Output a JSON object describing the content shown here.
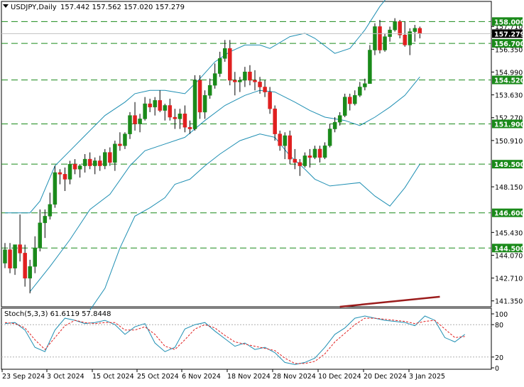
{
  "header": {
    "symbol_label": "USDJPY,Daily",
    "ohlc_label": "157.442 157.562 157.020 157.279"
  },
  "stoch": {
    "label": "Stoch(5,3,3) 61.6119 57.8448",
    "levels": [
      100,
      80,
      20,
      0
    ],
    "ylim": [
      0,
      100
    ]
  },
  "colors": {
    "up": "#1a8a1a",
    "down": "#e02020",
    "band": "#1f8fb3",
    "level_line": "#1a8a1a",
    "trendline": "#9b1c1c",
    "stoch_main": "#1f8fb3",
    "stoch_signal": "#e02020",
    "current_price_bg": "#000000"
  },
  "chart_data": {
    "type": "candlestick",
    "ylim": [
      141.0,
      159.2
    ],
    "y_ticks": [
      "157.710",
      "156.350",
      "154.990",
      "153.630",
      "152.270",
      "150.910",
      "148.150",
      "145.430",
      "144.070",
      "142.710",
      "141.350"
    ],
    "x_labels": [
      "23 Sep 2024",
      "3 Oct 2024",
      "15 Oct 2024",
      "25 Oct 2024",
      "6 Nov 2024",
      "18 Nov 2024",
      "28 Nov 2024",
      "10 Dec 2024",
      "20 Dec 2024",
      "3 Jan 2025"
    ],
    "level_lines": [
      "158.000",
      "156.700",
      "154.520",
      "151.900",
      "149.500",
      "146.600",
      "144.500"
    ],
    "current_price": "157.279",
    "candles": [
      [
        143.6,
        144.8,
        143.3,
        144.4
      ],
      [
        144.4,
        144.8,
        143.0,
        143.3
      ],
      [
        143.3,
        144.6,
        142.9,
        144.7
      ],
      [
        144.7,
        146.5,
        143.7,
        144.2
      ],
      [
        144.2,
        144.7,
        142.2,
        142.7
      ],
      [
        142.7,
        143.8,
        141.8,
        143.4
      ],
      [
        143.4,
        145.2,
        143.0,
        144.5
      ],
      [
        144.5,
        146.8,
        144.3,
        146.0
      ],
      [
        146.0,
        146.8,
        145.1,
        146.4
      ],
      [
        146.4,
        147.8,
        146.2,
        147.1
      ],
      [
        147.1,
        149.4,
        146.9,
        149.0
      ],
      [
        149.0,
        149.2,
        148.3,
        148.9
      ],
      [
        148.9,
        149.3,
        147.9,
        148.6
      ],
      [
        148.6,
        149.7,
        148.3,
        149.5
      ],
      [
        149.5,
        149.8,
        148.9,
        149.2
      ],
      [
        149.2,
        149.5,
        148.7,
        149.4
      ],
      [
        149.4,
        150.1,
        149.0,
        149.8
      ],
      [
        149.8,
        150.2,
        149.2,
        149.4
      ],
      [
        149.4,
        149.9,
        148.9,
        149.7
      ],
      [
        149.7,
        150.0,
        149.1,
        149.4
      ],
      [
        149.4,
        150.4,
        149.2,
        150.2
      ],
      [
        150.2,
        150.5,
        149.4,
        149.6
      ],
      [
        149.6,
        150.9,
        149.1,
        150.7
      ],
      [
        150.7,
        151.4,
        150.3,
        150.6
      ],
      [
        150.6,
        151.4,
        150.4,
        151.3
      ],
      [
        151.3,
        152.6,
        151.0,
        152.4
      ],
      [
        152.4,
        153.2,
        151.5,
        151.9
      ],
      [
        151.9,
        152.5,
        151.4,
        152.2
      ],
      [
        152.2,
        153.5,
        152.1,
        153.1
      ],
      [
        153.1,
        153.4,
        152.6,
        152.9
      ],
      [
        152.9,
        153.5,
        152.4,
        153.3
      ],
      [
        153.3,
        153.9,
        152.6,
        152.7
      ],
      [
        152.7,
        153.1,
        152.1,
        153.0
      ],
      [
        153.0,
        153.4,
        152.1,
        152.3
      ],
      [
        152.3,
        152.8,
        151.6,
        152.2
      ],
      [
        152.2,
        152.8,
        151.6,
        152.5
      ],
      [
        152.5,
        153.0,
        151.4,
        151.7
      ],
      [
        151.7,
        152.1,
        151.3,
        151.6
      ],
      [
        151.6,
        154.8,
        151.5,
        154.5
      ],
      [
        154.5,
        154.8,
        152.2,
        152.6
      ],
      [
        152.6,
        153.9,
        152.2,
        153.6
      ],
      [
        153.6,
        154.6,
        153.4,
        154.2
      ],
      [
        154.2,
        155.5,
        154.0,
        154.9
      ],
      [
        154.9,
        156.2,
        154.7,
        155.8
      ],
      [
        155.8,
        156.9,
        155.6,
        156.4
      ],
      [
        156.4,
        156.9,
        154.2,
        154.5
      ],
      [
        154.5,
        155.0,
        153.6,
        154.4
      ],
      [
        154.4,
        154.7,
        153.8,
        154.5
      ],
      [
        154.5,
        155.3,
        154.1,
        155.0
      ],
      [
        155.0,
        155.4,
        154.2,
        154.5
      ],
      [
        154.5,
        155.1,
        153.9,
        154.4
      ],
      [
        154.4,
        154.7,
        153.7,
        154.1
      ],
      [
        154.1,
        154.5,
        153.5,
        153.8
      ],
      [
        153.8,
        154.1,
        152.5,
        152.8
      ],
      [
        152.8,
        153.0,
        150.9,
        151.3
      ],
      [
        151.3,
        151.5,
        150.3,
        150.6
      ],
      [
        150.6,
        151.4,
        149.8,
        151.2
      ],
      [
        151.2,
        151.5,
        149.5,
        149.8
      ],
      [
        149.8,
        150.4,
        149.2,
        149.6
      ],
      [
        149.6,
        149.8,
        148.8,
        149.4
      ],
      [
        149.4,
        150.2,
        149.3,
        150.0
      ],
      [
        150.0,
        150.4,
        149.3,
        149.9
      ],
      [
        149.9,
        150.6,
        149.8,
        150.4
      ],
      [
        150.4,
        150.6,
        149.6,
        149.9
      ],
      [
        149.9,
        150.8,
        149.8,
        150.6
      ],
      [
        150.6,
        151.9,
        150.5,
        151.6
      ],
      [
        151.6,
        152.3,
        151.4,
        152.0
      ],
      [
        152.0,
        152.6,
        151.8,
        152.4
      ],
      [
        152.4,
        153.7,
        152.3,
        153.5
      ],
      [
        153.5,
        153.7,
        152.7,
        153.1
      ],
      [
        153.1,
        153.9,
        153.0,
        153.6
      ],
      [
        153.6,
        154.4,
        153.5,
        154.1
      ],
      [
        154.1,
        154.6,
        153.9,
        154.3
      ],
      [
        154.3,
        156.6,
        154.3,
        156.3
      ],
      [
        156.3,
        157.9,
        156.0,
        157.7
      ],
      [
        157.7,
        158.1,
        156.1,
        156.3
      ],
      [
        156.3,
        157.3,
        156.2,
        157.1
      ],
      [
        157.1,
        157.7,
        156.8,
        157.5
      ],
      [
        157.5,
        158.2,
        157.4,
        158.0
      ],
      [
        158.0,
        158.1,
        157.0,
        157.2
      ],
      [
        157.2,
        158.0,
        156.5,
        156.6
      ],
      [
        156.6,
        157.6,
        156.0,
        157.4
      ],
      [
        157.4,
        157.8,
        156.8,
        157.6
      ],
      [
        157.6,
        157.7,
        157.0,
        157.3
      ]
    ],
    "bollinger": {
      "upper": [
        [
          0,
          146.6
        ],
        [
          2,
          146.6
        ],
        [
          5,
          146.6
        ],
        [
          7,
          147.3
        ],
        [
          10,
          149.4
        ],
        [
          13,
          150.3
        ],
        [
          16,
          151.2
        ],
        [
          20,
          152.4
        ],
        [
          24,
          153.2
        ],
        [
          26,
          153.7
        ],
        [
          29,
          153.9
        ],
        [
          32,
          153.9
        ],
        [
          36,
          153.7
        ],
        [
          39,
          154.6
        ],
        [
          42,
          155.6
        ],
        [
          45,
          156.2
        ],
        [
          48,
          156.6
        ],
        [
          51,
          156.6
        ],
        [
          53,
          156.4
        ],
        [
          57,
          157.1
        ],
        [
          60,
          157.3
        ],
        [
          62,
          157.0
        ],
        [
          66,
          156.1
        ],
        [
          69,
          156.4
        ],
        [
          72,
          157.5
        ],
        [
          75,
          158.9
        ],
        [
          78,
          160.0
        ],
        [
          81,
          161.3
        ]
      ],
      "middle": [
        [
          5,
          141.9
        ],
        [
          9,
          143.4
        ],
        [
          13,
          145.0
        ],
        [
          17,
          146.8
        ],
        [
          21,
          147.7
        ],
        [
          25,
          149.4
        ],
        [
          28,
          150.3
        ],
        [
          32,
          150.7
        ],
        [
          36,
          151.1
        ],
        [
          40,
          152.1
        ],
        [
          44,
          153.0
        ],
        [
          48,
          153.6
        ],
        [
          51,
          153.9
        ],
        [
          54,
          153.8
        ],
        [
          58,
          153.2
        ],
        [
          61,
          152.7
        ],
        [
          64,
          152.3
        ],
        [
          68,
          152.1
        ],
        [
          71,
          151.8
        ],
        [
          74,
          152.3
        ],
        [
          77,
          152.9
        ],
        [
          80,
          153.6
        ],
        [
          83,
          154.7
        ]
      ],
      "lower": [
        [
          17,
          140.8
        ],
        [
          20,
          142.1
        ],
        [
          23,
          144.5
        ],
        [
          26,
          146.4
        ],
        [
          29,
          146.9
        ],
        [
          32,
          147.5
        ],
        [
          34,
          148.3
        ],
        [
          37,
          148.6
        ],
        [
          40,
          149.4
        ],
        [
          43,
          150.1
        ],
        [
          47,
          150.9
        ],
        [
          51,
          151.3
        ],
        [
          54,
          151.1
        ],
        [
          57,
          150.0
        ],
        [
          60,
          149.2
        ],
        [
          62,
          148.6
        ],
        [
          65,
          148.2
        ],
        [
          68,
          148.3
        ],
        [
          71,
          148.4
        ],
        [
          74,
          147.6
        ],
        [
          77,
          147.0
        ],
        [
          80,
          148.1
        ],
        [
          83,
          149.5
        ]
      ]
    },
    "trendline": [
      [
        67,
        141.0
      ],
      [
        87,
        141.6
      ]
    ],
    "stoch_main": [
      [
        0,
        82
      ],
      [
        2,
        84
      ],
      [
        4,
        70
      ],
      [
        6,
        38
      ],
      [
        8,
        30
      ],
      [
        10,
        70
      ],
      [
        12,
        92
      ],
      [
        14,
        88
      ],
      [
        16,
        82
      ],
      [
        18,
        84
      ],
      [
        20,
        88
      ],
      [
        22,
        80
      ],
      [
        24,
        62
      ],
      [
        26,
        76
      ],
      [
        28,
        82
      ],
      [
        30,
        46
      ],
      [
        32,
        30
      ],
      [
        34,
        38
      ],
      [
        36,
        72
      ],
      [
        38,
        80
      ],
      [
        40,
        84
      ],
      [
        42,
        68
      ],
      [
        44,
        54
      ],
      [
        46,
        40
      ],
      [
        48,
        46
      ],
      [
        50,
        34
      ],
      [
        52,
        38
      ],
      [
        54,
        28
      ],
      [
        56,
        10
      ],
      [
        58,
        6
      ],
      [
        60,
        10
      ],
      [
        62,
        18
      ],
      [
        64,
        38
      ],
      [
        66,
        62
      ],
      [
        68,
        74
      ],
      [
        70,
        92
      ],
      [
        72,
        96
      ],
      [
        74,
        92
      ],
      [
        76,
        88
      ],
      [
        78,
        86
      ],
      [
        80,
        84
      ],
      [
        82,
        78
      ],
      [
        84,
        96
      ],
      [
        86,
        88
      ],
      [
        88,
        56
      ],
      [
        90,
        48
      ],
      [
        92,
        62
      ]
    ],
    "stoch_signal": [
      [
        0,
        84
      ],
      [
        2,
        82
      ],
      [
        4,
        74
      ],
      [
        6,
        52
      ],
      [
        8,
        34
      ],
      [
        10,
        56
      ],
      [
        12,
        78
      ],
      [
        14,
        88
      ],
      [
        16,
        84
      ],
      [
        18,
        82
      ],
      [
        20,
        84
      ],
      [
        22,
        84
      ],
      [
        24,
        70
      ],
      [
        26,
        70
      ],
      [
        28,
        76
      ],
      [
        30,
        62
      ],
      [
        32,
        40
      ],
      [
        34,
        34
      ],
      [
        36,
        52
      ],
      [
        38,
        72
      ],
      [
        40,
        80
      ],
      [
        42,
        74
      ],
      [
        44,
        60
      ],
      [
        46,
        48
      ],
      [
        48,
        44
      ],
      [
        50,
        40
      ],
      [
        52,
        36
      ],
      [
        54,
        32
      ],
      [
        56,
        18
      ],
      [
        58,
        8
      ],
      [
        60,
        8
      ],
      [
        62,
        12
      ],
      [
        64,
        26
      ],
      [
        66,
        48
      ],
      [
        68,
        64
      ],
      [
        70,
        80
      ],
      [
        72,
        92
      ],
      [
        74,
        92
      ],
      [
        76,
        90
      ],
      [
        78,
        88
      ],
      [
        80,
        86
      ],
      [
        82,
        82
      ],
      [
        84,
        86
      ],
      [
        86,
        88
      ],
      [
        88,
        72
      ],
      [
        90,
        56
      ],
      [
        92,
        58
      ]
    ]
  }
}
